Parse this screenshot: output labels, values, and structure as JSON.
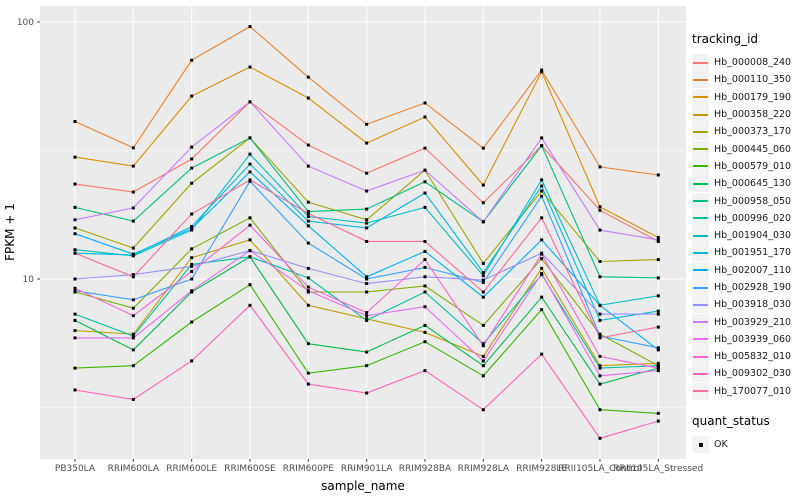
{
  "colors": {
    "panel_bg": "#EBEBEB",
    "grid": "#FFFFFF",
    "tick": "#333333",
    "tick_label": "#4D4D4D",
    "point": "#000000",
    "legend_key_bg": "#F2F2F2"
  },
  "chart_data": {
    "type": "line",
    "title": "",
    "xlabel": "sample_name",
    "ylabel": "FPKM + 1",
    "y_scale": "log10",
    "y_ticks": [
      10,
      100
    ],
    "y_tick_labels": [
      "10",
      "100"
    ],
    "y_minor_ticks": [
      3.1623,
      31.623
    ],
    "ylim": [
      2.0,
      115.0
    ],
    "grid": "on",
    "legend_position": "right",
    "legend_title": "tracking_id",
    "point_legend": {
      "title": "quant_status",
      "items": [
        "OK"
      ],
      "shape": "filled-black-square"
    },
    "categories": [
      "PB350LA",
      "RRIM600LA",
      "RRIM600LE",
      "RRIM600SE",
      "RRIM600PE",
      "RRIM901LA",
      "RRIM928BA",
      "RRIM928LA",
      "RRIM928LE",
      "RRII105LA_Control",
      "RRII105LA_Stressed"
    ],
    "series": [
      {
        "name": "Hb_000008_240",
        "color": "#F8766D",
        "values": [
          23.4,
          21.8,
          29.3,
          48.9,
          33.2,
          25.8,
          32.3,
          19.8,
          33.0,
          18.5,
          14.0
        ]
      },
      {
        "name": "Hb_000110_350",
        "color": "#EA8331",
        "values": [
          41.0,
          32.4,
          71.0,
          96.0,
          61.0,
          40.0,
          48.4,
          32.3,
          65.0,
          27.3,
          25.4
        ]
      },
      {
        "name": "Hb_000179_190",
        "color": "#D89000",
        "values": [
          29.8,
          27.5,
          51.5,
          66.8,
          50.6,
          33.8,
          42.7,
          23.2,
          64.0,
          19.1,
          14.5
        ]
      },
      {
        "name": "Hb_000358_220",
        "color": "#C09B00",
        "values": [
          6.3,
          6.1,
          12.1,
          14.2,
          7.9,
          7.0,
          6.2,
          5.0,
          11.0,
          4.6,
          4.7
        ]
      },
      {
        "name": "Hb_000373_170",
        "color": "#A3A500",
        "values": [
          15.8,
          13.2,
          23.6,
          35.4,
          19.9,
          17.0,
          26.5,
          11.5,
          22.0,
          11.7,
          11.9
        ]
      },
      {
        "name": "Hb_000445_060",
        "color": "#7CAE00",
        "values": [
          8.9,
          7.7,
          13.1,
          17.3,
          8.9,
          8.9,
          9.4,
          6.6,
          12.0,
          6.1,
          4.6
        ]
      },
      {
        "name": "Hb_000579_010",
        "color": "#39B600",
        "values": [
          4.5,
          4.6,
          6.8,
          9.5,
          4.3,
          4.6,
          5.7,
          4.2,
          7.6,
          3.1,
          3.0
        ]
      },
      {
        "name": "Hb_000645_130",
        "color": "#00BB4E",
        "values": [
          6.9,
          5.3,
          8.9,
          12.2,
          5.6,
          5.2,
          6.6,
          4.6,
          8.5,
          3.9,
          4.5
        ]
      },
      {
        "name": "Hb_000958_050",
        "color": "#00BF7D",
        "values": [
          19.0,
          16.8,
          27.0,
          35.4,
          18.3,
          18.7,
          23.9,
          16.7,
          33.0,
          10.2,
          10.1
        ]
      },
      {
        "name": "Hb_000996_020",
        "color": "#00C1A3",
        "values": [
          7.3,
          6.0,
          11.4,
          12.2,
          10.1,
          6.9,
          8.9,
          5.6,
          10.4,
          4.5,
          4.6
        ]
      },
      {
        "name": "Hb_001904_030",
        "color": "#00BFC4",
        "values": [
          13.0,
          12.3,
          15.5,
          30.6,
          17.5,
          16.5,
          19.0,
          10.3,
          24.3,
          7.9,
          8.6
        ]
      },
      {
        "name": "Hb_001951_170",
        "color": "#00BAE0",
        "values": [
          12.6,
          12.4,
          16.0,
          28.0,
          16.8,
          15.8,
          21.6,
          10.6,
          23.0,
          6.9,
          7.5
        ]
      },
      {
        "name": "Hb_002007_110",
        "color": "#00B0F6",
        "values": [
          15.0,
          12.5,
          15.7,
          26.1,
          16.1,
          10.2,
          12.8,
          8.5,
          14.2,
          7.9,
          5.3
        ]
      },
      {
        "name": "Hb_002928_190",
        "color": "#35A2FF",
        "values": [
          9.0,
          8.3,
          10.0,
          24.0,
          13.8,
          10.0,
          11.1,
          9.7,
          21.0,
          6.0,
          5.4
        ]
      },
      {
        "name": "Hb_003918_030",
        "color": "#9590FF",
        "values": [
          10.0,
          10.4,
          11.2,
          12.9,
          11.0,
          9.6,
          10.2,
          9.9,
          12.6,
          7.3,
          7.3
        ]
      },
      {
        "name": "Hb_003929_210",
        "color": "#C77CFF",
        "values": [
          17.0,
          18.9,
          32.6,
          48.9,
          27.5,
          22.0,
          26.5,
          16.7,
          35.4,
          15.5,
          14.2
        ]
      },
      {
        "name": "Hb_003939_060",
        "color": "#E76BF3",
        "values": [
          5.9,
          5.9,
          9.0,
          12.9,
          9.0,
          7.2,
          7.8,
          4.8,
          10.5,
          4.2,
          4.4
        ]
      },
      {
        "name": "Hb_005832_010",
        "color": "#FA62DB",
        "values": [
          9.2,
          7.2,
          10.7,
          16.2,
          9.3,
          7.4,
          11.9,
          5.5,
          12.5,
          5.0,
          4.5
        ]
      },
      {
        "name": "Hb_009302_030",
        "color": "#FF62BC",
        "values": [
          3.7,
          3.4,
          4.8,
          7.9,
          3.9,
          3.6,
          4.4,
          3.1,
          5.1,
          2.4,
          2.8
        ]
      },
      {
        "name": "Hb_170077_010",
        "color": "#FF6A98",
        "values": [
          12.6,
          10.2,
          17.9,
          24.3,
          18.0,
          14.0,
          14.0,
          8.9,
          17.3,
          5.9,
          6.5
        ]
      }
    ]
  }
}
